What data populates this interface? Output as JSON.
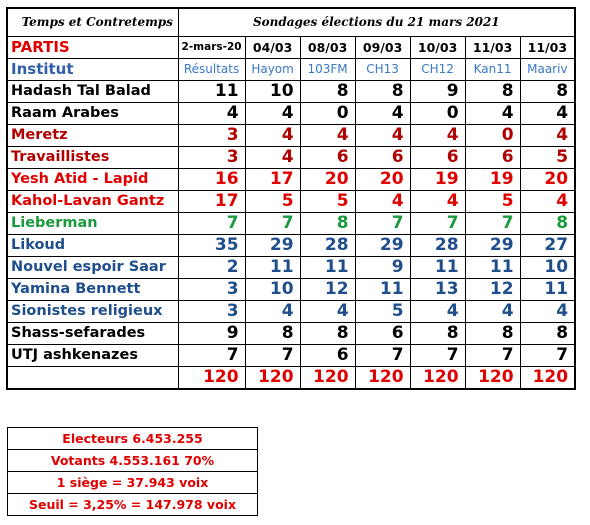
{
  "chart_data": {
    "type": "table",
    "title_left": "Temps et Contretemps",
    "title_right": "Sondages élections du 21 mars 2021",
    "party_header": "PARTIS",
    "institute_header": "Institut",
    "columns": [
      {
        "date": "2-mars-20",
        "institute": "Résultats"
      },
      {
        "date": "04/03",
        "institute": "Hayom"
      },
      {
        "date": "08/03",
        "institute": "103FM"
      },
      {
        "date": "09/03",
        "institute": "CH13"
      },
      {
        "date": "10/03",
        "institute": "CH12"
      },
      {
        "date": "11/03",
        "institute": "Kan11"
      },
      {
        "date": "11/03",
        "institute": "Maariv"
      }
    ],
    "rows": [
      {
        "party": "Hadash Tal Balad",
        "color": "#000000",
        "values": [
          11,
          10,
          8,
          8,
          9,
          8,
          8
        ]
      },
      {
        "party": "Raam Arabes",
        "color": "#000000",
        "values": [
          4,
          4,
          0,
          4,
          0,
          4,
          4
        ]
      },
      {
        "party": "Meretz",
        "color": "#b00000",
        "values": [
          3,
          4,
          4,
          4,
          4,
          0,
          4
        ]
      },
      {
        "party": "Travaillistes",
        "color": "#b00000",
        "values": [
          3,
          4,
          6,
          6,
          6,
          6,
          5
        ]
      },
      {
        "party": "Yesh Atid - Lapid",
        "color": "#e00000",
        "values": [
          16,
          17,
          20,
          20,
          19,
          19,
          20
        ]
      },
      {
        "party": "Kahol-Lavan Gantz",
        "color": "#e00000",
        "values": [
          17,
          5,
          5,
          4,
          4,
          5,
          4
        ]
      },
      {
        "party": "Lieberman",
        "color": "#1a9a3c",
        "values": [
          7,
          7,
          8,
          7,
          7,
          7,
          8
        ]
      },
      {
        "party": "Likoud",
        "color": "#1f4e8c",
        "values": [
          35,
          29,
          28,
          29,
          28,
          29,
          27
        ]
      },
      {
        "party": "Nouvel espoir Saar",
        "color": "#1f4e8c",
        "values": [
          2,
          11,
          11,
          9,
          11,
          11,
          10
        ]
      },
      {
        "party": "Yamina Bennett",
        "color": "#1f4e8c",
        "values": [
          3,
          10,
          12,
          11,
          13,
          12,
          11
        ]
      },
      {
        "party": "Sionistes religieux",
        "color": "#1f4e8c",
        "values": [
          3,
          4,
          4,
          5,
          4,
          4,
          4
        ]
      },
      {
        "party": "Shass-sefarades",
        "color": "#000000",
        "values": [
          9,
          8,
          8,
          6,
          8,
          8,
          8
        ]
      },
      {
        "party": "UTJ ashkenazes",
        "color": "#000000",
        "values": [
          7,
          7,
          6,
          7,
          7,
          7,
          7
        ]
      }
    ],
    "totals": [
      120,
      120,
      120,
      120,
      120,
      120,
      120
    ],
    "total_color": "#e00000"
  },
  "stats": {
    "lines": [
      "Electeurs  6.453.255",
      "Votants 4.553.161  70%",
      "1 siège = 37.943 voix",
      "Seuil =  3,25% = 147.978 voix"
    ],
    "color": "#e00000"
  }
}
